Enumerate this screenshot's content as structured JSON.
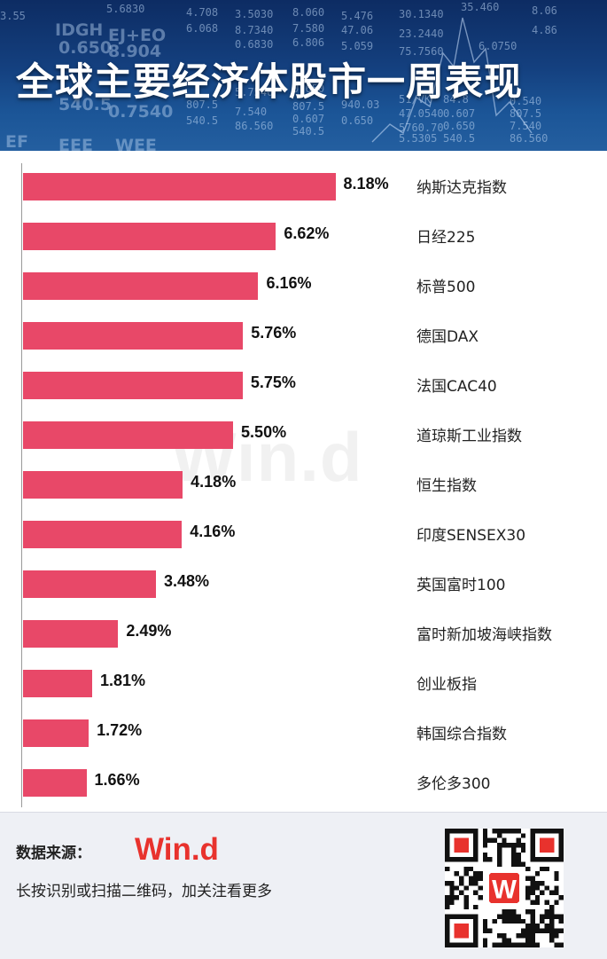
{
  "header": {
    "title": "全球主要经济体股市一周表现"
  },
  "chart_data": {
    "type": "bar",
    "orientation": "horizontal",
    "categories": [
      "纳斯达克指数",
      "日经225",
      "标普500",
      "德国DAX",
      "法国CAC40",
      "道琼斯工业指数",
      "恒生指数",
      "印度SENSEX30",
      "英国富时100",
      "富时新加坡海峡指数",
      "创业板指",
      "韩国综合指数",
      "多伦多300"
    ],
    "values": [
      8.18,
      6.62,
      6.16,
      5.76,
      5.75,
      5.5,
      4.18,
      4.16,
      3.48,
      2.49,
      1.81,
      1.72,
      1.66
    ],
    "value_labels": [
      "8.18%",
      "6.62%",
      "6.16%",
      "5.76%",
      "5.75%",
      "5.50%",
      "4.18%",
      "4.16%",
      "3.48%",
      "2.49%",
      "1.81%",
      "1.72%",
      "1.66%"
    ],
    "bar_color": "#e84868",
    "unit": "%",
    "xlim": [
      0,
      10
    ],
    "grid": false,
    "legend": "none"
  },
  "watermark": "Win.d",
  "footer": {
    "source_label": "数据来源：",
    "source_logo": "Win.d",
    "hint": "长按识别或扫描二维码，加关注看更多",
    "qr_badge": "W"
  },
  "colors": {
    "accent": "#e8322d",
    "bar": "#e84868",
    "banner": "#14407f"
  }
}
